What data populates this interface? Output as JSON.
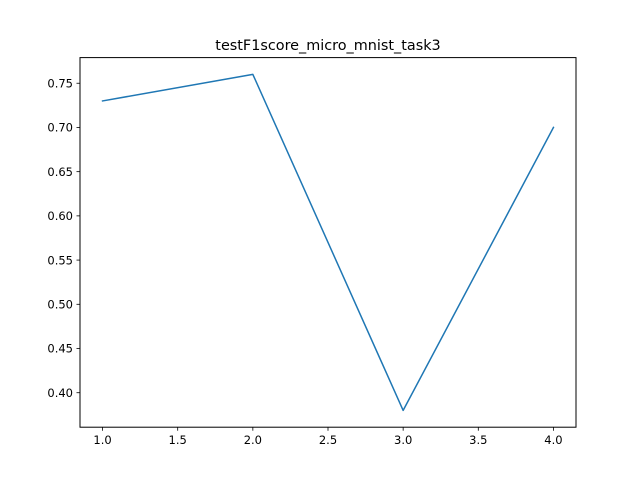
{
  "chart_data": {
    "type": "line",
    "title": "testF1score_micro_mnist_task3",
    "xlabel": "",
    "ylabel": "",
    "x": [
      1.0,
      2.0,
      3.0,
      4.0
    ],
    "series": [
      {
        "values": [
          0.73,
          0.76,
          0.38,
          0.7
        ],
        "color": "#1f77b4"
      }
    ],
    "xlim": [
      0.85,
      4.15
    ],
    "ylim": [
      0.361,
      0.779
    ],
    "xticks": [
      1.0,
      1.5,
      2.0,
      2.5,
      3.0,
      3.5,
      4.0
    ],
    "xtick_labels": [
      "1.0",
      "1.5",
      "2.0",
      "2.5",
      "3.0",
      "3.5",
      "4.0"
    ],
    "yticks": [
      0.4,
      0.45,
      0.5,
      0.55,
      0.6,
      0.65,
      0.7,
      0.75
    ],
    "ytick_labels": [
      "0.40",
      "0.45",
      "0.50",
      "0.55",
      "0.60",
      "0.65",
      "0.70",
      "0.75"
    ],
    "grid": false,
    "legend": "none"
  }
}
